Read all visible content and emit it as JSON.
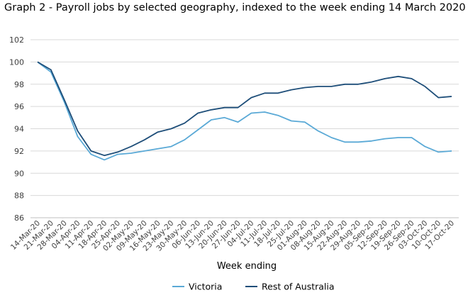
{
  "chart_data": {
    "type": "line",
    "title": "Graph 2 - Payroll jobs by selected geography, indexed to the week ending 14 March 2020 (a)",
    "xlabel": "Week ending",
    "ylabel": "",
    "ylim": [
      86,
      102
    ],
    "yticks": [
      86,
      88,
      90,
      92,
      94,
      96,
      98,
      100,
      102
    ],
    "grid": true,
    "legend_position": "bottom",
    "categories": [
      "14-Mar-20",
      "21-Mar-20",
      "28-Mar-20",
      "04-Apr-20",
      "11-Apr-20",
      "18-Apr-20",
      "25-Apr-20",
      "02-May-20",
      "09-May-20",
      "16-May-20",
      "23-May-20",
      "30-May-20",
      "06-Jun-20",
      "13-Jun-20",
      "20-Jun-20",
      "27-Jun-20",
      "04-Jul-20",
      "11-Jul-20",
      "18-Jul-20",
      "25-Jul-20",
      "01-Aug-20",
      "08-Aug-20",
      "15-Aug-20",
      "22-Aug-20",
      "29-Aug-20",
      "05-Sep-20",
      "12-Sep-20",
      "19-Sep-20",
      "26-Sep-20",
      "03-Oct-20",
      "10-Oct-20",
      "17-Oct-20"
    ],
    "series": [
      {
        "name": "Victoria",
        "color": "#5aa9d6",
        "values": [
          100.0,
          99.1,
          96.4,
          93.3,
          91.7,
          91.2,
          91.7,
          91.8,
          92.0,
          92.2,
          92.4,
          93.0,
          93.9,
          94.8,
          95.0,
          94.6,
          95.4,
          95.5,
          95.2,
          94.7,
          94.6,
          93.8,
          93.2,
          92.8,
          92.8,
          92.9,
          93.1,
          93.2,
          93.2,
          92.4,
          91.9,
          92.0
        ]
      },
      {
        "name": "Rest of Australia",
        "color": "#1e4e79",
        "values": [
          100.0,
          99.3,
          96.6,
          93.8,
          92.0,
          91.6,
          91.9,
          92.4,
          93.0,
          93.7,
          94.0,
          94.5,
          95.4,
          95.7,
          95.9,
          95.9,
          96.8,
          97.2,
          97.2,
          97.5,
          97.7,
          97.8,
          97.8,
          98.0,
          98.0,
          98.2,
          98.5,
          98.7,
          98.5,
          97.8,
          96.8,
          96.9
        ]
      }
    ]
  }
}
